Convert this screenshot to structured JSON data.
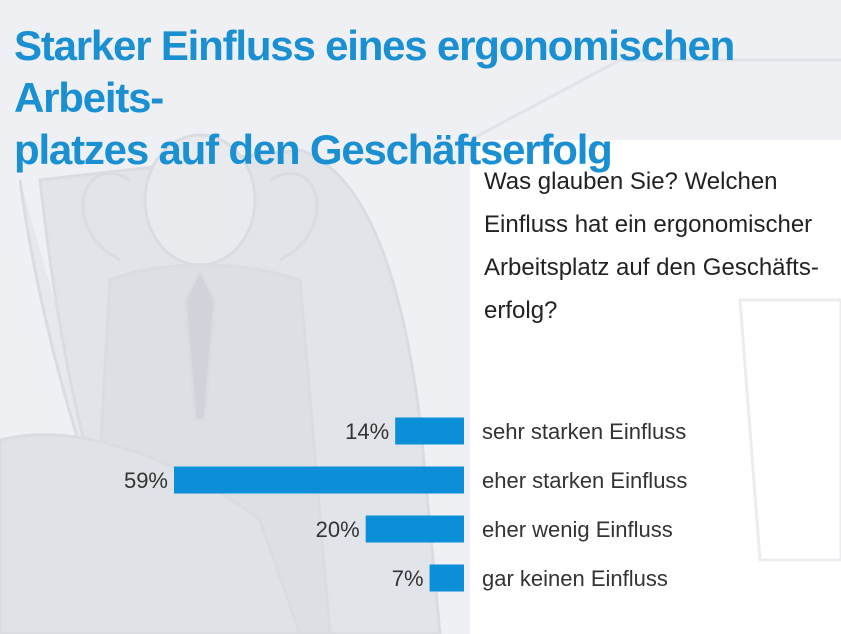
{
  "chart_data": {
    "type": "bar",
    "orientation": "horizontal",
    "title": "Starker Einfluss eines ergonomischen Arbeits-\nplatzes auf den Geschäftserfolg",
    "subtitle": "Was glauben Sie? Welchen Einfluss hat ein ergonomischer Arbeitsplatz auf den Geschäfts-erfolg?",
    "subtitle_lines": [
      "Was glauben Sie? Welchen",
      "Einfluss hat ein ergonomischer",
      "Arbeitsplatz auf den Geschäfts-",
      "erfolg?"
    ],
    "categories": [
      "sehr starken Einfluss",
      "eher starken Einfluss",
      "eher wenig Einfluss",
      "gar keinen Einfluss"
    ],
    "values": [
      14,
      59,
      20,
      7
    ],
    "value_labels": [
      "14%",
      "59%",
      "20%",
      "7%"
    ],
    "unit": "%",
    "xlim": [
      0,
      59
    ],
    "bar_color": "#0a8fd8",
    "grid": false,
    "legend": "none"
  },
  "colors": {
    "title": "#1a8fd2",
    "text": "#222222",
    "background_photo": "#e9ebee"
  }
}
